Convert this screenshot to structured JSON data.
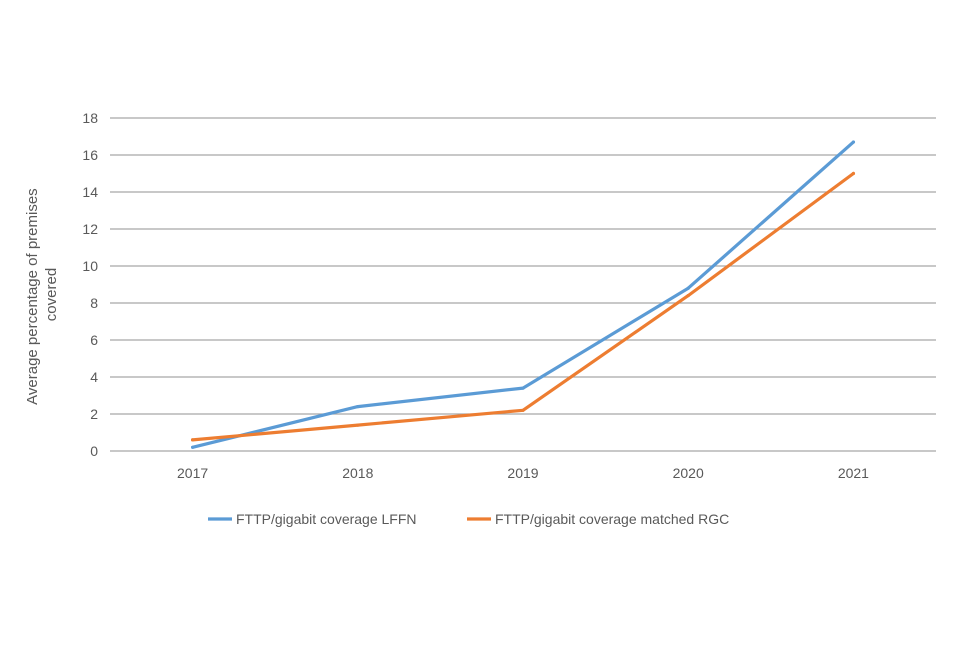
{
  "chart_data": {
    "type": "line",
    "title": "",
    "xlabel": "",
    "ylabel": "Average percentage of premises covered",
    "ylabel_lines": [
      "Average percentage of premises",
      "covered"
    ],
    "categories": [
      "2017",
      "2018",
      "2019",
      "2020",
      "2021"
    ],
    "ylim": [
      0,
      18
    ],
    "yticks": [
      0,
      2,
      4,
      6,
      8,
      10,
      12,
      14,
      16,
      18
    ],
    "grid": "horizontal",
    "legend_position": "bottom",
    "series": [
      {
        "name": "FTTP/gigabit coverage LFFN",
        "color": "#5b9bd5",
        "values": [
          0.2,
          2.4,
          3.4,
          8.8,
          16.7
        ]
      },
      {
        "name": "FTTP/gigabit coverage matched RGC",
        "color": "#ed7d31",
        "values": [
          0.6,
          1.4,
          2.2,
          8.4,
          15.0
        ]
      }
    ]
  }
}
